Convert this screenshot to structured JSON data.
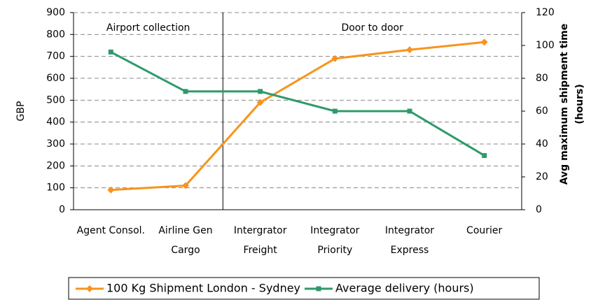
{
  "chart_data": {
    "type": "line",
    "categories": [
      [
        "Agent Consol."
      ],
      [
        "Airline Gen",
        "Cargo"
      ],
      [
        "Intergrator",
        "Freight"
      ],
      [
        "Integrator",
        "Priority"
      ],
      [
        "Integrator",
        "Express"
      ],
      [
        "Courier"
      ]
    ],
    "series": [
      {
        "name": "100 Kg Shipment London - Sydney",
        "color": "#f7941d",
        "values": [
          90,
          110,
          490,
          690,
          730,
          765
        ]
      },
      {
        "name": "Average delivery (hours)",
        "color": "#2e9a6a",
        "axis": "y2",
        "values": [
          96,
          72,
          72,
          60,
          60,
          33
        ]
      }
    ],
    "ylabel": "GBP",
    "y2label": [
      "Avg maximum shipment time",
      "(hours)"
    ],
    "annotations": [
      "Airport collection",
      "Door to door"
    ],
    "ylim": [
      0,
      900
    ],
    "yticks": [
      0,
      100,
      200,
      300,
      400,
      500,
      600,
      700,
      800,
      900
    ],
    "y2lim": [
      0,
      120
    ],
    "y2ticks": [
      0,
      20,
      40,
      60,
      80,
      100,
      120
    ],
    "grid": true,
    "legend": "bottom"
  }
}
